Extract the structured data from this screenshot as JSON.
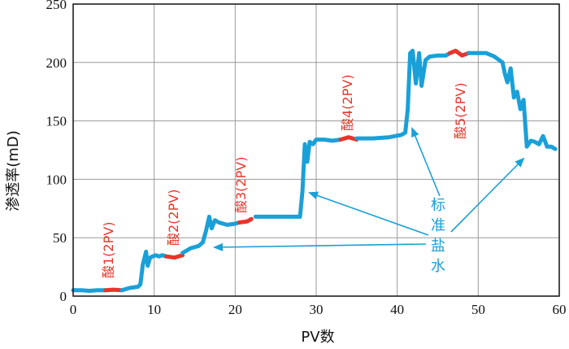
{
  "chart_data": {
    "type": "line",
    "xlabel": "PV数",
    "ylabel": "渗透率(mD)",
    "xlim": [
      0,
      60
    ],
    "ylim": [
      0,
      250
    ],
    "xticks": [
      0,
      10,
      20,
      30,
      40,
      50,
      60
    ],
    "yticks": [
      0,
      50,
      100,
      150,
      200,
      250
    ],
    "grid": true,
    "colors": {
      "brine": "#1aa0d8",
      "acid": "#e8352b",
      "annotation": "#1aa0d8",
      "label": "#e8352b"
    },
    "series": [
      {
        "segment": "brine",
        "x": [
          0,
          1,
          2,
          3,
          4
        ],
        "y": [
          5,
          5,
          4.5,
          5,
          5
        ]
      },
      {
        "segment": "acid",
        "x": [
          4,
          5,
          6
        ],
        "y": [
          5,
          5.5,
          5
        ]
      },
      {
        "segment": "brine",
        "x": [
          6,
          7,
          8,
          8.3,
          8.6,
          9,
          9.2,
          9.5,
          9.8,
          10.2,
          10.6,
          11,
          11.5
        ],
        "y": [
          5,
          7,
          8,
          10,
          27,
          38,
          26,
          33,
          34,
          35,
          34,
          35,
          34
        ]
      },
      {
        "segment": "acid",
        "x": [
          11.5,
          12.5,
          13.5
        ],
        "y": [
          34,
          33,
          35
        ]
      },
      {
        "segment": "brine",
        "x": [
          13.5,
          14.5,
          15.5,
          16,
          16.4,
          16.8,
          17.1,
          17.5,
          18,
          19,
          20,
          20.5
        ],
        "y": [
          37,
          41,
          43,
          46,
          56,
          68,
          58,
          65,
          63,
          61,
          62,
          63
        ]
      },
      {
        "segment": "acid",
        "x": [
          20.5,
          21.5,
          22
        ],
        "y": [
          63,
          64,
          66
        ]
      },
      {
        "segment": "brine",
        "x": [
          22.5,
          24,
          26,
          27.5,
          28,
          28.3,
          28.6,
          28.9,
          29.2,
          29.6,
          30,
          31,
          32,
          33
        ],
        "y": [
          68,
          68,
          68,
          68,
          68,
          90,
          130,
          115,
          132,
          130,
          134,
          134,
          133,
          134
        ]
      },
      {
        "segment": "acid",
        "x": [
          33,
          34,
          35
        ],
        "y": [
          134,
          136,
          134
        ]
      },
      {
        "segment": "brine",
        "x": [
          35,
          37,
          39,
          40.5,
          41,
          41.3,
          41.6,
          41.9,
          42.3,
          42.7,
          43,
          43.5,
          44,
          45,
          46,
          46.5
        ],
        "y": [
          135,
          135,
          136,
          138,
          140,
          160,
          208,
          210,
          182,
          208,
          180,
          202,
          205,
          206,
          206,
          208
        ]
      },
      {
        "segment": "acid",
        "x": [
          46.5,
          47.2,
          48,
          48.8
        ],
        "y": [
          208,
          210,
          206,
          208
        ]
      },
      {
        "segment": "brine",
        "x": [
          48.8,
          50,
          51,
          52,
          53,
          53.3,
          53.6,
          54,
          54.4,
          54.8,
          55.2,
          55.6,
          56,
          56.5,
          57,
          57.5,
          58,
          58.5,
          59,
          59.5
        ],
        "y": [
          208,
          208,
          208,
          205,
          200,
          190,
          183,
          195,
          170,
          175,
          160,
          168,
          128,
          133,
          132,
          130,
          137,
          128,
          128,
          126
        ]
      }
    ],
    "acid_labels": [
      "酸1(2PV)",
      "酸2(2PV)",
      "酸3(2PV)",
      "酸4(2PV)",
      "酸5(2PV)"
    ],
    "brine_label": [
      "标",
      "准",
      "盐",
      "水"
    ]
  }
}
